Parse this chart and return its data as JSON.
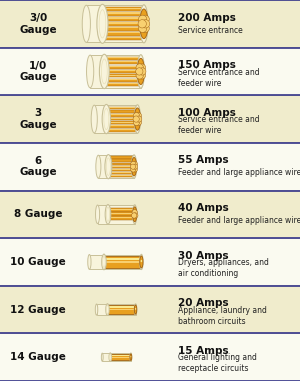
{
  "bg_color": "#fafae8",
  "border_color_top": "#333388",
  "border_color_bottom": "#888888",
  "rows": [
    {
      "gauge": "3/0\nGauge",
      "amps_bold": "200 Amps",
      "desc": "Service entrance",
      "wire_strands": 7,
      "wire_size": 1.0,
      "row_bg": "#f0eccc"
    },
    {
      "gauge": "1/0\nGauge",
      "amps_bold": "150 Amps",
      "desc": "Service entrance and\nfeeder wire",
      "wire_strands": 7,
      "wire_size": 0.88,
      "row_bg": "#fafaf0"
    },
    {
      "gauge": "3\nGauge",
      "amps_bold": "100 Amps",
      "desc": "Service entrance and\nfeeder wire",
      "wire_strands": 7,
      "wire_size": 0.75,
      "row_bg": "#f0eccc"
    },
    {
      "gauge": "6\nGauge",
      "amps_bold": "55 Amps",
      "desc": "Feeder and large appliance wire",
      "wire_strands": 7,
      "wire_size": 0.62,
      "row_bg": "#fafaf0"
    },
    {
      "gauge": "8 Gauge",
      "amps_bold": "40 Amps",
      "desc": "Feeder and large appliance wire",
      "wire_strands": 3,
      "wire_size": 0.5,
      "row_bg": "#f0eccc"
    },
    {
      "gauge": "10 Gauge",
      "amps_bold": "30 Amps",
      "desc": "Dryers, appliances, and\nair conditioning",
      "wire_strands": 1,
      "wire_size": 0.4,
      "row_bg": "#fafaf0"
    },
    {
      "gauge": "12 Gauge",
      "amps_bold": "20 Amps",
      "desc": "Appliance, laundry and\nbathroom circuits",
      "wire_strands": 1,
      "wire_size": 0.3,
      "row_bg": "#f0eccc"
    },
    {
      "gauge": "14 Gauge",
      "amps_bold": "15 Amps",
      "desc": "General lighting and\nreceptacle circuits",
      "wire_strands": 1,
      "wire_size": 0.22,
      "row_bg": "#fafaf0"
    }
  ],
  "wire_color": "#E8A020",
  "wire_dark": "#A06010",
  "wire_mid": "#C87818",
  "wire_light": "#F8D070",
  "wire_highlight": "#FAEA90",
  "insul_color": "#F8F4DC",
  "insul_border": "#C8C098",
  "insul_inner": "#E8E0B8"
}
